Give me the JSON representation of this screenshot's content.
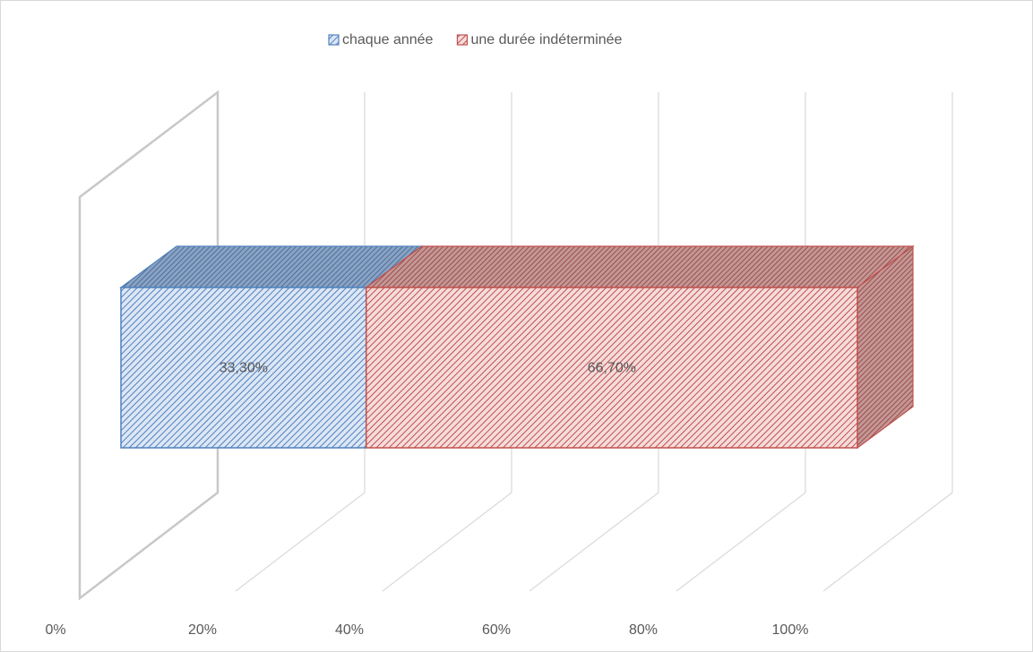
{
  "chart_data": {
    "type": "stacked_bar_3d",
    "categories": [
      null
    ],
    "series": [
      {
        "name": "chaque année",
        "color": "#4f81bd",
        "values": [
          33.3
        ],
        "value_labels": [
          "33,30%"
        ]
      },
      {
        "name": "une durée indéterminée",
        "color": "#c0504d",
        "values": [
          66.7
        ],
        "value_labels": [
          "66,70%"
        ]
      }
    ],
    "xlim": [
      0,
      100
    ],
    "xticks": [
      {
        "value": 0,
        "label": "0%"
      },
      {
        "value": 20,
        "label": "20%"
      },
      {
        "value": 40,
        "label": "40%"
      },
      {
        "value": 60,
        "label": "60%"
      },
      {
        "value": 80,
        "label": "80%"
      },
      {
        "value": 100,
        "label": "100%"
      }
    ],
    "grid": true,
    "legend": "top"
  }
}
